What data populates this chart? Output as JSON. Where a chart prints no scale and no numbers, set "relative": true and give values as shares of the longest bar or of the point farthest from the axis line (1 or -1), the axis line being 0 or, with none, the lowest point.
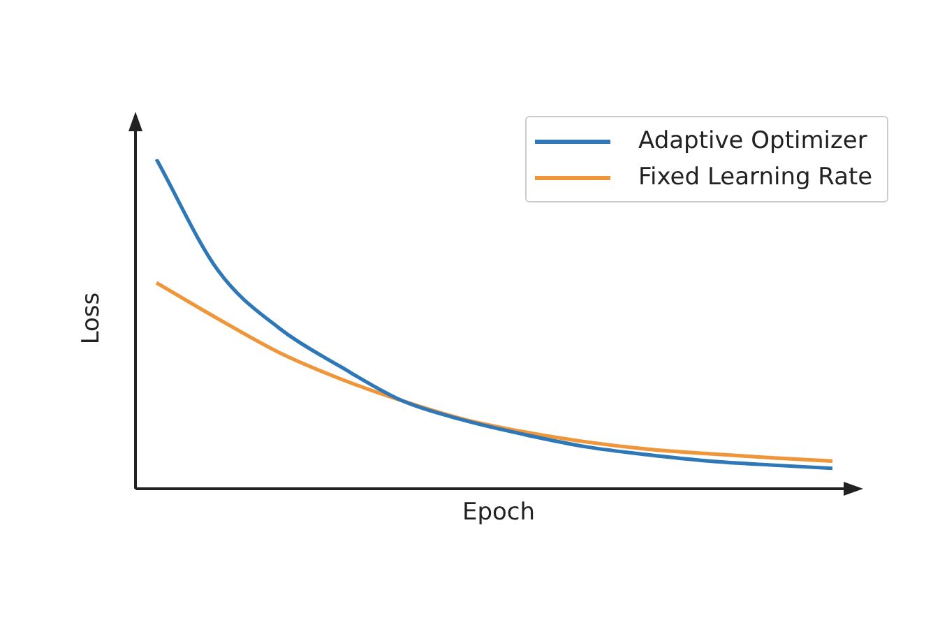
{
  "chart_data": {
    "type": "line",
    "xlabel": "Epoch",
    "ylabel": "Loss",
    "relative": true,
    "legend": "top right",
    "categories": [
      null,
      null,
      null,
      null,
      null,
      null,
      null,
      null,
      null,
      null,
      null,
      null
    ],
    "series": [
      {
        "name": "Adaptive Optimizer",
        "color": "#2f78b8",
        "values": [
          1.0,
          0.663,
          0.487,
          0.37,
          0.267,
          0.208,
          0.164,
          0.127,
          0.103,
          0.084,
          0.072,
          0.062
        ]
      },
      {
        "name": "Fixed Learning Rate",
        "color": "#f0963a",
        "values": [
          0.625,
          0.516,
          0.413,
          0.333,
          0.267,
          0.211,
          0.172,
          0.142,
          0.12,
          0.106,
          0.094,
          0.084
        ]
      }
    ]
  }
}
